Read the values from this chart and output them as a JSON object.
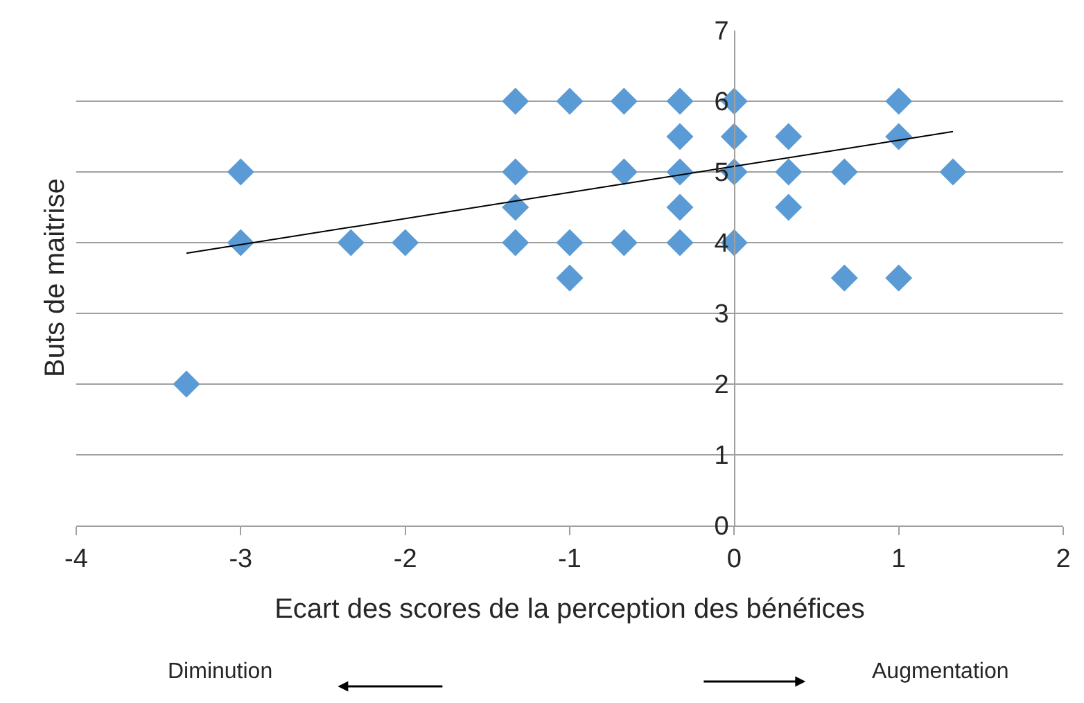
{
  "chart_data": {
    "type": "scatter",
    "xlabel": "Ecart des scores de la perception des bénéfices",
    "ylabel": "Buts de maitrise",
    "series": [
      {
        "marker": "diamond",
        "color": "#5b9bd5",
        "x": [
          -3.33,
          -3,
          -3,
          -2.33,
          -2,
          -1.33,
          -1.33,
          -1.33,
          -1.33,
          -1,
          -1,
          -1,
          -0.67,
          -0.67,
          -0.67,
          -0.33,
          -0.33,
          -0.33,
          -0.33,
          -0.33,
          0,
          0,
          0,
          0,
          0.33,
          0.33,
          0.33,
          0.67,
          0.67,
          1,
          1,
          1,
          1.33
        ],
        "values": [
          2,
          5,
          4,
          4,
          4,
          6,
          5,
          4.5,
          4,
          6,
          4,
          3.5,
          6,
          5,
          4,
          6,
          5.5,
          5,
          4.5,
          4,
          6,
          5.5,
          5,
          4,
          5.5,
          5,
          4.5,
          5,
          3.5,
          6,
          5.5,
          3.5,
          5
        ]
      },
      {
        "type": "line",
        "marker": "none",
        "color": "#000000",
        "x": [
          -3.33,
          1.33
        ],
        "values": [
          3.85,
          5.57
        ]
      }
    ],
    "annotations": [
      "Diminution",
      "Augmentation"
    ],
    "xlim": [
      -4,
      2
    ],
    "xticks": [
      -4,
      -3,
      -2,
      -1,
      0,
      1,
      2
    ],
    "ylim": [
      0,
      7
    ],
    "yticks": [
      0,
      1,
      2,
      3,
      4,
      5,
      6,
      7
    ],
    "grid": "y",
    "legend": false
  }
}
